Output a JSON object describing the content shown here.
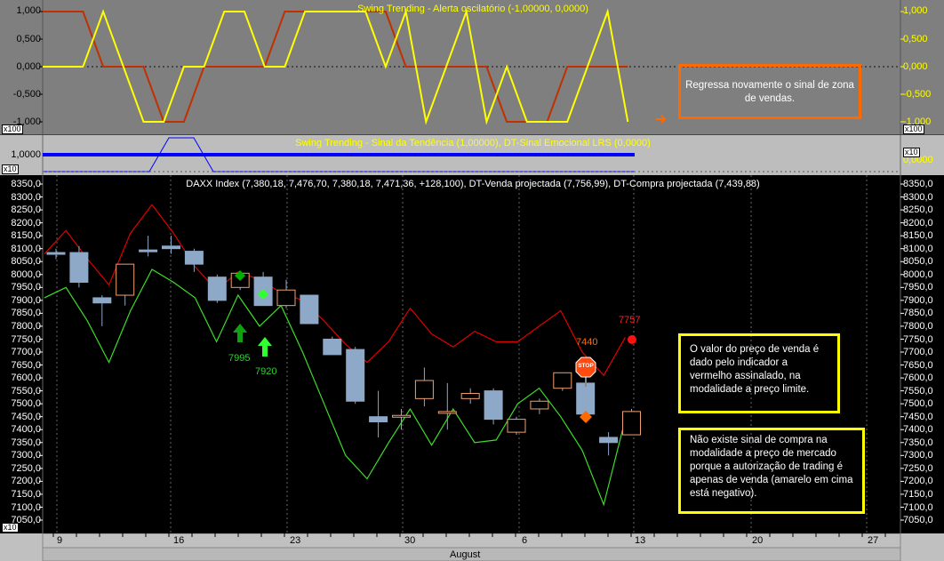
{
  "osc_pane": {
    "title": "Swing Trending - Alerta oscilatório (-1,00000, 0,0000)",
    "axis_labels": [
      "1,000",
      "0,500",
      "0,000",
      "-0,500",
      "-1,000"
    ],
    "scale_tag": "x100",
    "callout": "Regressa novamente o sinal de zona de vendas.",
    "yellow_series": [
      0,
      0,
      0,
      1,
      0,
      -1,
      -1,
      0,
      0,
      1,
      1,
      0,
      0,
      1,
      1,
      1,
      1,
      0,
      1,
      -1,
      0,
      1,
      -1,
      0,
      -1,
      -1,
      -1,
      0,
      1,
      -1
    ],
    "red_series": [
      1,
      1,
      1,
      0,
      0,
      0,
      -1,
      -1,
      0,
      0,
      0,
      0,
      1,
      1,
      1,
      1,
      1,
      1,
      0,
      0,
      0,
      0,
      0,
      -1,
      -1,
      -1,
      0,
      0,
      0,
      0
    ]
  },
  "trend_pane": {
    "title": "Swing Trending - Sinal da Tendência (1,00000), DT-Sinal Emocional LRS (0,0000)",
    "axis_label": "1,0000",
    "right_label": "0,0000",
    "scale_tag": "x10"
  },
  "price_pane": {
    "title": "DAXX Index (7,380,18, 7,476,70, 7,380,18, 7,471,36, +128,100), DT-Venda projectada (7,756,99), DT-Compra projectada (7,439,88)",
    "axis_labels": [
      "8350,0",
      "8300,0",
      "8250,0",
      "8200,0",
      "8150,0",
      "8100,0",
      "8050,0",
      "8000,0",
      "7950,0",
      "7900,0",
      "7850,0",
      "7800,0",
      "7750,0",
      "7700,0",
      "7650,0",
      "7600,0",
      "7550,0",
      "7500,0",
      "7450,0",
      "7400,0",
      "7350,0",
      "7300,0",
      "7250,0",
      "7200,0",
      "7150,0",
      "7100,0",
      "7050,0"
    ],
    "scale_tag": "x10",
    "label_7995": "7995",
    "label_7920": "7920",
    "label_7440": "7440",
    "label_7757": "7757",
    "stop_sign": "STOP",
    "callout_1": "O valor do preço de venda é dado pelo indicador a vermelho assinalado, na modalidade a preço limite.",
    "callout_2": "Não existe sinal de compra na modalidade a preço de mercado porque a autorização de trading é apenas de venda (amarelo em cima está negativo).",
    "colors": {
      "red_line": "#e00000",
      "green_line": "#3cdc28",
      "bear_body": "#8ea8c8",
      "bull_body": "#f0a070",
      "callout_border": "#ffff00"
    }
  },
  "date_axis": {
    "day_labels": [
      "9",
      "16",
      "23",
      "30",
      "6",
      "13",
      "20",
      "27"
    ],
    "month_label": "August"
  },
  "chart_data": {
    "type": "candlestick",
    "title": "DAXX Index (7,380,18, 7,476,70, 7,380,18, 7,471,36, +128,100), DT-Venda projectada (7,756,99), DT-Compra projectada (7,439,88)",
    "ylim": [
      7050,
      8350
    ],
    "candles": [
      {
        "o": 8085,
        "h": 8100,
        "l": 8060,
        "c": 8080
      },
      {
        "o": 8085,
        "h": 8110,
        "l": 7950,
        "c": 7970
      },
      {
        "o": 7910,
        "h": 7920,
        "l": 7800,
        "c": 7890
      },
      {
        "o": 7920,
        "h": 8040,
        "l": 7880,
        "c": 8040
      },
      {
        "o": 8095,
        "h": 8150,
        "l": 8070,
        "c": 8090
      },
      {
        "o": 8110,
        "h": 8150,
        "l": 8080,
        "c": 8100
      },
      {
        "o": 8090,
        "h": 8100,
        "l": 8010,
        "c": 8040
      },
      {
        "o": 7990,
        "h": 8000,
        "l": 7890,
        "c": 7900
      },
      {
        "o": 7950,
        "h": 8010,
        "l": 7940,
        "c": 8005
      },
      {
        "o": 7990,
        "h": 8010,
        "l": 7880,
        "c": 7880
      },
      {
        "o": 7880,
        "h": 7980,
        "l": 7870,
        "c": 7940
      },
      {
        "o": 7920,
        "h": 7920,
        "l": 7810,
        "c": 7810
      },
      {
        "o": 7750,
        "h": 7760,
        "l": 7690,
        "c": 7690
      },
      {
        "o": 7710,
        "h": 7720,
        "l": 7500,
        "c": 7510
      },
      {
        "o": 7450,
        "h": 7550,
        "l": 7370,
        "c": 7430
      },
      {
        "o": 7450,
        "h": 7480,
        "l": 7400,
        "c": 7455
      },
      {
        "o": 7520,
        "h": 7640,
        "l": 7490,
        "c": 7590
      },
      {
        "o": 7470,
        "h": 7580,
        "l": 7400,
        "c": 7470
      },
      {
        "o": 7520,
        "h": 7560,
        "l": 7500,
        "c": 7540
      },
      {
        "o": 7550,
        "h": 7560,
        "l": 7420,
        "c": 7440
      },
      {
        "o": 7390,
        "h": 7450,
        "l": 7380,
        "c": 7440
      },
      {
        "o": 7480,
        "h": 7520,
        "l": 7460,
        "c": 7510
      },
      {
        "o": 7560,
        "h": 7620,
        "l": 7550,
        "c": 7620
      },
      {
        "o": 7580,
        "h": 7580,
        "l": 7440,
        "c": 7460
      },
      {
        "o": 7370,
        "h": 7390,
        "l": 7300,
        "c": 7350
      },
      {
        "o": 7380,
        "h": 7480,
        "l": 7380,
        "c": 7470
      }
    ],
    "series": [
      {
        "name": "DT-Venda projectada",
        "values": [
          8080,
          8170,
          8060,
          7960,
          8160,
          8270,
          8160,
          8030,
          7940,
          8010,
          7980,
          7930,
          7900,
          7820,
          7730,
          7660,
          7740,
          7870,
          7770,
          7720,
          7780,
          7740,
          7740,
          7800,
          7860,
          7700,
          7610,
          7757
        ]
      },
      {
        "name": "DT-Compra projectada",
        "values": [
          7910,
          7950,
          7820,
          7660,
          7860,
          8020,
          7970,
          7910,
          7740,
          7920,
          7800,
          7880,
          7700,
          7500,
          7300,
          7210,
          7350,
          7480,
          7340,
          7480,
          7350,
          7360,
          7500,
          7560,
          7450,
          7320,
          7110,
          7440
        ]
      }
    ]
  }
}
